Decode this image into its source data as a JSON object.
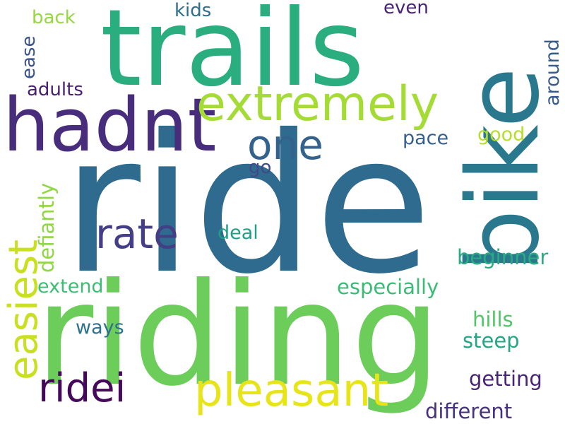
{
  "words": [
    {
      "text": "ride",
      "color": "#2f6b8e"
    },
    {
      "text": "riding",
      "color": "#6ccd5a"
    },
    {
      "text": "trails",
      "color": "#2aae80"
    },
    {
      "text": "bike",
      "color": "#2a788e"
    },
    {
      "text": "hadnt",
      "color": "#472d7b"
    },
    {
      "text": "extremely",
      "color": "#a5db36"
    },
    {
      "text": "pleasant",
      "color": "#e8e41a"
    },
    {
      "text": "easiest",
      "color": "#c9e020"
    },
    {
      "text": "ridei",
      "color": "#45085a"
    },
    {
      "text": "one",
      "color": "#33638d"
    },
    {
      "text": "rate",
      "color": "#433e85"
    },
    {
      "text": "beginner",
      "color": "#27ad81"
    },
    {
      "text": "especially",
      "color": "#3bbb75"
    },
    {
      "text": "defiantly",
      "color": "#8fd744"
    },
    {
      "text": "getting",
      "color": "#482475"
    },
    {
      "text": "different",
      "color": "#46327e"
    },
    {
      "text": "steep",
      "color": "#22a785"
    },
    {
      "text": "hills",
      "color": "#52c569"
    },
    {
      "text": "extend",
      "color": "#3fbc73"
    },
    {
      "text": "ways",
      "color": "#2c728e"
    },
    {
      "text": "deal",
      "color": "#1f9f88"
    },
    {
      "text": "pace",
      "color": "#355f8d"
    },
    {
      "text": "good",
      "color": "#b5de2b"
    },
    {
      "text": "go",
      "color": "#3e4a89"
    },
    {
      "text": "adults",
      "color": "#481f70"
    },
    {
      "text": "back",
      "color": "#95d840"
    },
    {
      "text": "ease",
      "color": "#3b528b"
    },
    {
      "text": "kids",
      "color": "#2e6e8e"
    },
    {
      "text": "even",
      "color": "#482374"
    },
    {
      "text": "around",
      "color": "#375b8d"
    }
  ]
}
